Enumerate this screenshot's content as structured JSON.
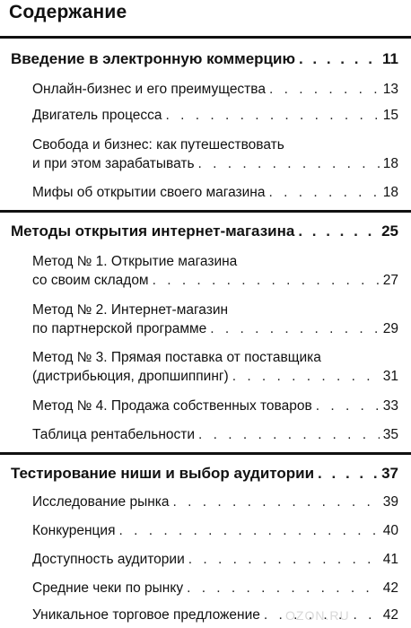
{
  "title": "Содержание",
  "chapters": [
    {
      "title": "Введение в электронную коммерцию",
      "page": "11",
      "items": [
        {
          "lines": [
            "Онлайн-бизнес и его преимущества"
          ],
          "page": "13"
        },
        {
          "lines": [
            "Двигатель процесса"
          ],
          "page": "15"
        },
        {
          "lines": [
            "Свобода и бизнес: как путешествовать",
            "и при этом зарабатывать"
          ],
          "page": "18"
        },
        {
          "lines": [
            "Мифы об открытии своего магазина"
          ],
          "page": "18"
        }
      ]
    },
    {
      "title": "Методы открытия интернет-магазина",
      "page": "25",
      "items": [
        {
          "lines": [
            "Метод № 1. Открытие магазина",
            "со своим складом"
          ],
          "page": "27"
        },
        {
          "lines": [
            "Метод № 2. Интернет-магазин",
            "по партнерской программе"
          ],
          "page": "29"
        },
        {
          "lines": [
            "Метод № 3. Прямая поставка от поставщика",
            "(дистрибьюция, дропшиппинг)"
          ],
          "page": "31"
        },
        {
          "lines": [
            "Метод № 4. Продажа собственных товаров"
          ],
          "page": "33"
        },
        {
          "lines": [
            "Таблица рентабельности"
          ],
          "page": "35"
        }
      ]
    },
    {
      "title": "Тестирование ниши и выбор аудитории",
      "page": "37",
      "items": [
        {
          "lines": [
            "Исследование рынка"
          ],
          "page": "39"
        },
        {
          "lines": [
            "Конкуренция"
          ],
          "page": "40"
        },
        {
          "lines": [
            "Доступность аудитории"
          ],
          "page": "41"
        },
        {
          "lines": [
            "Средние чеки по рынку"
          ],
          "page": "42"
        },
        {
          "lines": [
            "Уникальное торговое предложение"
          ],
          "page": "42"
        }
      ]
    }
  ],
  "watermark": "OZON.RU"
}
